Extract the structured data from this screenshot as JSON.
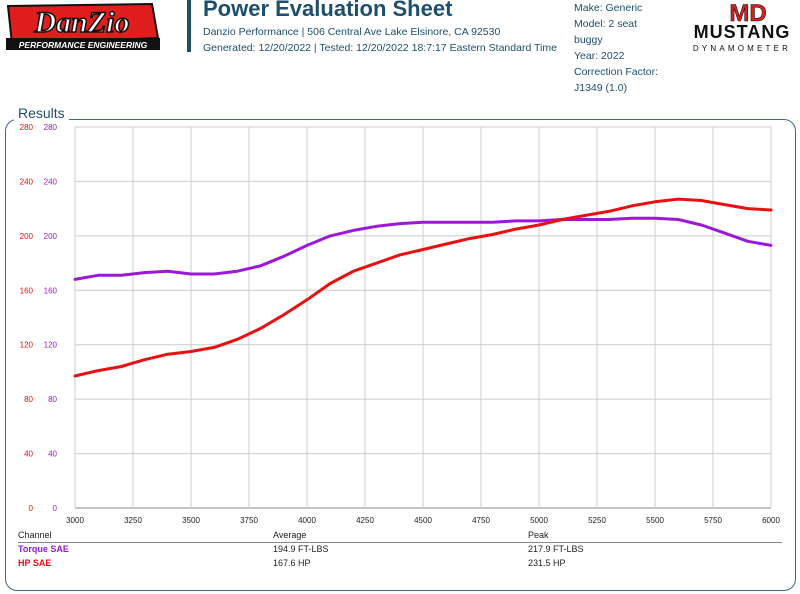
{
  "header": {
    "logo_text": "DanZio",
    "logo_subtext": "PERFORMANCE ENGINEERING",
    "title": "Power Evaluation Sheet",
    "address_line": "Danzio Performance | 506 Central Ave Lake Elsinore, CA 92530",
    "generated_line": "Generated: 12/20/2022 | Tested: 12/20/2022 18:7:17 Eastern Standard Time",
    "vehicle": [
      "Make: Generic",
      "Model: 2 seat",
      "buggy",
      "Year: 2022",
      "Correction Factor:",
      "J1349 (1.0)"
    ],
    "brand_logo_mark": "MD",
    "brand_logo_name": "MUSTANG",
    "brand_logo_sub": "DYNAMOMETER"
  },
  "results_label": "Results",
  "colors": {
    "torque": "#9b19d6",
    "hp": "#e81010",
    "accent": "#1d4f6d",
    "grid": "#cccccc"
  },
  "chart_data": {
    "type": "line",
    "x": [
      3000,
      3100,
      3200,
      3300,
      3400,
      3500,
      3600,
      3700,
      3800,
      3900,
      4000,
      4100,
      4200,
      4300,
      4400,
      4500,
      4600,
      4700,
      4800,
      4900,
      5000,
      5100,
      5200,
      5300,
      5400,
      5500,
      5600,
      5700,
      5800,
      5900,
      6000
    ],
    "xlim": [
      3000,
      6000
    ],
    "ylim": [
      0,
      280
    ],
    "xticks": [
      "3000",
      "3250",
      "3500",
      "3750",
      "4000",
      "4250",
      "4500",
      "4750",
      "5000",
      "5250",
      "5500",
      "5750",
      "6000"
    ],
    "yticks_left": [
      "280",
      "240",
      "200",
      "160",
      "120",
      "80",
      "40",
      "0"
    ],
    "yticks_right": [
      "280",
      "240",
      "200",
      "160",
      "120",
      "80",
      "40",
      "0"
    ],
    "grid": true,
    "series": [
      {
        "name": "Torque SAE",
        "color": "#9b19d6",
        "values": [
          168,
          171,
          171,
          173,
          174,
          172,
          172,
          174,
          178,
          185,
          193,
          200,
          204,
          207,
          209,
          210,
          210,
          210,
          210,
          211,
          211,
          212,
          212,
          212,
          213,
          213,
          212,
          208,
          202,
          196,
          193
        ]
      },
      {
        "name": "HP SAE",
        "color": "#e81010",
        "values": [
          97,
          101,
          104,
          109,
          113,
          115,
          118,
          124,
          132,
          142,
          153,
          165,
          174,
          180,
          186,
          190,
          194,
          198,
          201,
          205,
          208,
          212,
          215,
          218,
          222,
          225,
          227,
          226,
          223,
          220,
          219
        ]
      }
    ]
  },
  "table": {
    "headers": [
      "Channel",
      "Average",
      "Peak"
    ],
    "rows": [
      {
        "channel": "Torque SAE",
        "average": "194.9 FT-LBS",
        "peak": "217.9 FT-LBS"
      },
      {
        "channel": "HP SAE",
        "average": "167.6 HP",
        "peak": "231.5 HP"
      }
    ]
  }
}
